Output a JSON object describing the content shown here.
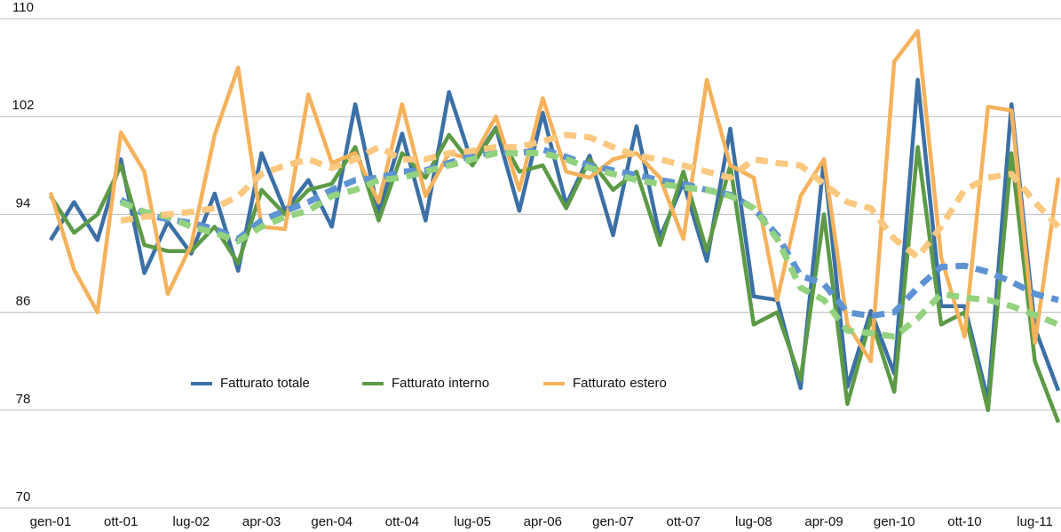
{
  "chart_data": {
    "type": "line",
    "categories": [
      "gen-01",
      null,
      null,
      "ott-01",
      null,
      null,
      "lug-02",
      null,
      null,
      "apr-03",
      null,
      null,
      "gen-04",
      null,
      null,
      "ott-04",
      null,
      null,
      "lug-05",
      null,
      null,
      "apr-06",
      null,
      null,
      "gen-07",
      null,
      null,
      "ott-07",
      null,
      null,
      "lug-08",
      null,
      null,
      "apr-09",
      null,
      null,
      "gen-10",
      null,
      null,
      "ott-10",
      null,
      null,
      "lug-11",
      null
    ],
    "ylim": [
      70,
      110
    ],
    "yticks": [
      70,
      78,
      86,
      94,
      102,
      110
    ],
    "grid": true,
    "series": [
      {
        "name": "Fatturato totale",
        "color": "#3b70a6",
        "values": [
          91.9,
          95.0,
          91.9,
          98.5,
          89.2,
          93.4,
          90.8,
          95.7,
          89.4,
          99.0,
          94.3,
          96.8,
          93.0,
          103.0,
          94.1,
          100.6,
          93.5,
          104.0,
          98.1,
          101.1,
          94.3,
          102.3,
          94.8,
          98.8,
          92.3,
          101.2,
          92.1,
          96.6,
          90.2,
          101.0,
          87.3,
          87.0,
          79.8,
          98.5,
          79.9,
          86.1,
          81.0,
          105.0,
          86.5,
          86.5,
          78.8,
          103.0,
          84.7,
          79.6
        ]
      },
      {
        "name": "Fatturato interno",
        "color": "#5c9a46",
        "values": [
          95.5,
          92.5,
          94.0,
          98.0,
          91.5,
          91.0,
          91.0,
          93.0,
          90.0,
          96.0,
          94.0,
          96.0,
          96.5,
          99.5,
          93.5,
          99.0,
          97.0,
          100.5,
          98.0,
          101.0,
          97.5,
          98.0,
          94.5,
          98.5,
          96.0,
          97.5,
          91.5,
          97.5,
          91.0,
          98.0,
          85.0,
          86.0,
          80.5,
          94.0,
          78.5,
          85.5,
          79.5,
          99.5,
          85.0,
          86.0,
          78.0,
          99.0,
          82.0,
          77.0
        ]
      },
      {
        "name": "Fatturato estero",
        "color": "#f5b25c",
        "values": [
          95.8,
          89.5,
          86.0,
          100.7,
          97.5,
          87.5,
          91.5,
          100.5,
          106.0,
          93.0,
          92.8,
          103.8,
          98.2,
          99.0,
          95.0,
          103.0,
          95.5,
          99.0,
          98.5,
          102.0,
          96.0,
          103.5,
          97.5,
          97.0,
          98.5,
          99.0,
          97.0,
          92.0,
          105.0,
          98.0,
          97.0,
          87.0,
          95.5,
          98.5,
          85.0,
          82.0,
          106.5,
          109.0,
          90.5,
          84.0,
          102.8,
          102.5,
          83.5,
          97.0
        ]
      },
      {
        "color": "#5e93d3",
        "dashed": true,
        "values": [
          null,
          null,
          null,
          95.2,
          94.0,
          93.6,
          93.3,
          92.8,
          92.0,
          93.5,
          94.3,
          95.0,
          96.0,
          96.8,
          97.0,
          97.5,
          97.6,
          98.2,
          98.8,
          99.1,
          99.0,
          99.3,
          98.7,
          98.0,
          97.6,
          97.2,
          96.8,
          96.5,
          96.0,
          95.6,
          94.5,
          92.3,
          89.0,
          88.3,
          86.0,
          85.7,
          86.0,
          88.0,
          89.7,
          89.8,
          89.3,
          88.5,
          87.5,
          87.0
        ]
      },
      {
        "color": "#93d27e",
        "dashed": true,
        "values": [
          null,
          null,
          null,
          95.0,
          94.2,
          93.8,
          93.0,
          92.5,
          91.8,
          93.0,
          93.8,
          94.3,
          95.5,
          96.0,
          96.8,
          97.0,
          97.5,
          98.0,
          98.5,
          99.0,
          99.0,
          99.0,
          98.5,
          97.8,
          97.3,
          96.8,
          96.5,
          96.2,
          96.0,
          95.5,
          94.5,
          92.0,
          88.0,
          87.0,
          84.5,
          84.3,
          84.0,
          85.5,
          87.5,
          87.2,
          87.0,
          86.5,
          85.8,
          85.0
        ]
      },
      {
        "color": "#fbc880",
        "dashed": true,
        "values": [
          null,
          null,
          null,
          93.5,
          93.8,
          94.0,
          94.2,
          94.5,
          95.5,
          97.3,
          98.0,
          98.5,
          97.8,
          98.5,
          99.5,
          98.5,
          98.5,
          99.0,
          99.2,
          99.5,
          99.5,
          100.0,
          100.5,
          100.3,
          99.5,
          98.8,
          98.5,
          98.0,
          97.5,
          97.0,
          98.5,
          98.2,
          98.0,
          96.5,
          95.0,
          94.5,
          92.0,
          90.5,
          93.0,
          96.0,
          97.0,
          97.3,
          95.0,
          93.0
        ]
      }
    ]
  }
}
